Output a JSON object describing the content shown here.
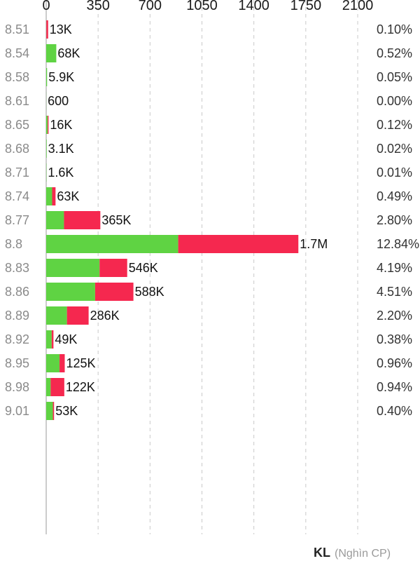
{
  "chart_data": {
    "type": "bar",
    "orientation": "horizontal",
    "stacked": true,
    "x_ticks": [
      "0",
      "350",
      "700",
      "1050",
      "1400",
      "1750",
      "2100"
    ],
    "xlim": [
      0,
      2100
    ],
    "grid": true,
    "categories": [
      "8.51",
      "8.54",
      "8.58",
      "8.61",
      "8.65",
      "8.68",
      "8.71",
      "8.74",
      "8.77",
      "8.8",
      "8.83",
      "8.86",
      "8.89",
      "8.92",
      "8.95",
      "8.98",
      "9.01"
    ],
    "series": [
      {
        "color": "#5fd343",
        "values": [
          1,
          68,
          5.9,
          0.6,
          10,
          3.1,
          1.6,
          40,
          120,
          890,
          360,
          330,
          140,
          37,
          90,
          30,
          45
        ]
      },
      {
        "color": "#f5284f",
        "values": [
          12,
          0,
          0,
          0,
          6,
          0,
          0,
          23,
          245,
          810,
          186,
          258,
          146,
          12,
          35,
          92,
          8
        ]
      }
    ],
    "volume_labels": [
      "13K",
      "68K",
      "5.9K",
      "600",
      "16K",
      "3.1K",
      "1.6K",
      "63K",
      "365K",
      "1.7M",
      "546K",
      "588K",
      "286K",
      "49K",
      "125K",
      "122K",
      "53K"
    ],
    "percent_labels": [
      "0.10%",
      "0.52%",
      "0.05%",
      "0.00%",
      "0.12%",
      "0.02%",
      "0.01%",
      "0.49%",
      "2.80%",
      "12.84%",
      "4.19%",
      "4.51%",
      "2.20%",
      "0.38%",
      "0.96%",
      "0.94%",
      "0.40%"
    ],
    "footer_bold": "KL",
    "footer_unit": "(Nghìn CP)"
  }
}
